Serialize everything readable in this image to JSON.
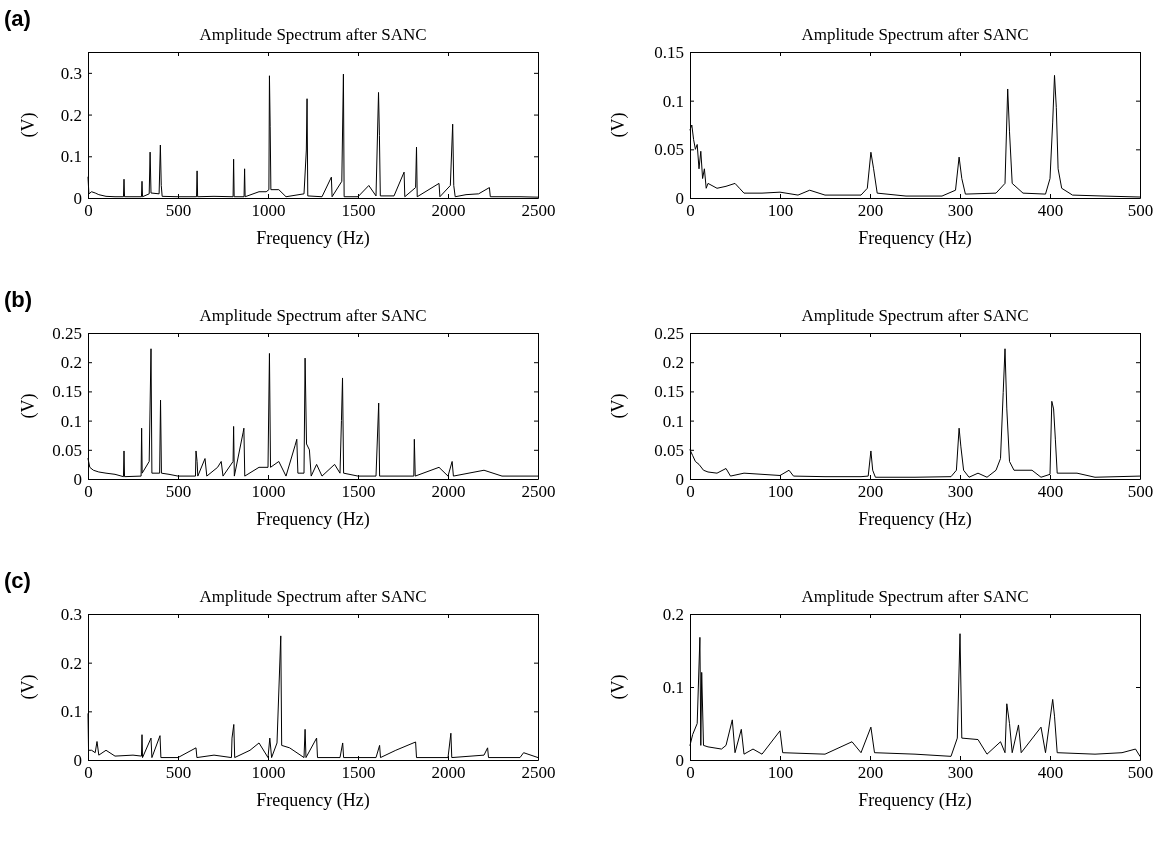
{
  "chart_data": [
    {
      "type": "line",
      "title": "Amplitude Spectrum after SANC",
      "xlabel": "Frequency (Hz)",
      "ylabel": "(V)",
      "annotations": [
        "(a)"
      ],
      "xlim": [
        0,
        2500
      ],
      "xticks": [
        0,
        500,
        1000,
        1500,
        2000,
        2500
      ],
      "ylim": [
        0,
        0.35
      ],
      "yticks": [
        0,
        0.1,
        0.2,
        0.3
      ],
      "marker": "none",
      "line_style": "solid",
      "grid": false,
      "series": [
        {
          "color": "#000000",
          "x": [
            0,
            5,
            20,
            40,
            60,
            100,
            150,
            197,
            200,
            203,
            297,
            300,
            303,
            340,
            345,
            350,
            395,
            402,
            407,
            412,
            500,
            603,
            606,
            609,
            700,
            806,
            809,
            812,
            867,
            870,
            873,
            950,
            990,
            1005,
            1008,
            1012,
            1016,
            1060,
            1100,
            1200,
            1213,
            1217,
            1221,
            1300,
            1352,
            1356,
            1410,
            1419,
            1423,
            1500,
            1560,
            1600,
            1614,
            1619,
            1624,
            1700,
            1756,
            1760,
            1820,
            1825,
            1829,
            1950,
            1955,
            2013,
            2026,
            2032,
            2040,
            2100,
            2170,
            2230,
            2235,
            2400,
            2500
          ],
          "values": [
            0.05,
            0.01,
            0.015,
            0.012,
            0.008,
            0.004,
            0.003,
            0.003,
            0.045,
            0.003,
            0.003,
            0.04,
            0.003,
            0.01,
            0.11,
            0.012,
            0.01,
            0.127,
            0.03,
            0.004,
            0.003,
            0.003,
            0.065,
            0.003,
            0.004,
            0.003,
            0.093,
            0.003,
            0.003,
            0.07,
            0.003,
            0.015,
            0.015,
            0.02,
            0.293,
            0.172,
            0.02,
            0.02,
            0.003,
            0.01,
            0.115,
            0.238,
            0.005,
            0.003,
            0.05,
            0.003,
            0.04,
            0.297,
            0.003,
            0.003,
            0.03,
            0.005,
            0.253,
            0.15,
            0.005,
            0.005,
            0.062,
            0.003,
            0.025,
            0.122,
            0.003,
            0.035,
            0.003,
            0.03,
            0.177,
            0.03,
            0.003,
            0.008,
            0.01,
            0.025,
            0.003,
            0.003,
            0.002
          ]
        }
      ]
    },
    {
      "type": "line",
      "title": "Amplitude Spectrum after SANC",
      "xlabel": "Frequency (Hz)",
      "ylabel": "(V)",
      "xlim": [
        0,
        500
      ],
      "xticks": [
        0,
        100,
        200,
        300,
        400,
        500
      ],
      "ylim": [
        0,
        0.15
      ],
      "yticks": [
        0,
        0.05,
        0.1,
        0.15
      ],
      "marker": "none",
      "line_style": "solid",
      "grid": false,
      "series": [
        {
          "color": "#000000",
          "x": [
            0,
            2,
            4,
            6,
            8,
            10,
            12,
            14,
            16,
            18,
            20,
            30,
            40,
            50,
            55,
            60,
            80,
            100,
            120,
            133,
            150,
            190,
            197,
            201,
            204,
            208,
            240,
            280,
            295,
            299,
            302,
            306,
            340,
            350,
            353,
            355,
            358,
            370,
            395,
            400,
            403,
            405,
            407,
            409,
            413,
            425,
            460,
            500
          ],
          "values": [
            0.07,
            0.075,
            0.06,
            0.05,
            0.055,
            0.03,
            0.048,
            0.02,
            0.03,
            0.01,
            0.015,
            0.01,
            0.012,
            0.015,
            0.01,
            0.005,
            0.005,
            0.006,
            0.003,
            0.008,
            0.003,
            0.003,
            0.01,
            0.047,
            0.03,
            0.005,
            0.002,
            0.002,
            0.008,
            0.042,
            0.02,
            0.004,
            0.005,
            0.015,
            0.112,
            0.068,
            0.015,
            0.005,
            0.004,
            0.02,
            0.078,
            0.126,
            0.093,
            0.03,
            0.01,
            0.003,
            0.002,
            0.001
          ]
        }
      ]
    },
    {
      "type": "line",
      "title": "Amplitude Spectrum after SANC",
      "xlabel": "Frequency (Hz)",
      "ylabel": "(V)",
      "annotations": [
        "(b)"
      ],
      "xlim": [
        0,
        2500
      ],
      "xticks": [
        0,
        500,
        1000,
        1500,
        2000,
        2500
      ],
      "ylim": [
        0,
        0.25
      ],
      "yticks": [
        0,
        0.05,
        0.1,
        0.15,
        0.2,
        0.25
      ],
      "marker": "none",
      "line_style": "solid",
      "grid": false,
      "series": [
        {
          "color": "#000000",
          "x": [
            0,
            10,
            30,
            60,
            100,
            150,
            197,
            200,
            203,
            295,
            298,
            301,
            340,
            350,
            355,
            398,
            403,
            408,
            450,
            500,
            597,
            600,
            606,
            610,
            650,
            660,
            720,
            740,
            750,
            806,
            809,
            813,
            862,
            866,
            871,
            950,
            1000,
            1008,
            1014,
            1060,
            1100,
            1150,
            1160,
            1166,
            1200,
            1206,
            1214,
            1230,
            1240,
            1270,
            1300,
            1370,
            1400,
            1408,
            1414,
            1420,
            1500,
            1600,
            1615,
            1620,
            1700,
            1810,
            1813,
            1818,
            1950,
            2000,
            2023,
            2030,
            2200,
            2300,
            2500
          ],
          "values": [
            0.035,
            0.02,
            0.015,
            0.012,
            0.01,
            0.008,
            0.004,
            0.048,
            0.004,
            0.005,
            0.087,
            0.01,
            0.03,
            0.223,
            0.01,
            0.01,
            0.135,
            0.01,
            0.008,
            0.005,
            0.005,
            0.048,
            0.03,
            0.005,
            0.035,
            0.005,
            0.02,
            0.03,
            0.005,
            0.03,
            0.09,
            0.005,
            0.08,
            0.087,
            0.005,
            0.02,
            0.02,
            0.215,
            0.02,
            0.03,
            0.005,
            0.057,
            0.068,
            0.01,
            0.01,
            0.207,
            0.06,
            0.05,
            0.005,
            0.025,
            0.005,
            0.025,
            0.01,
            0.1,
            0.173,
            0.01,
            0.005,
            0.005,
            0.13,
            0.005,
            0.005,
            0.005,
            0.068,
            0.005,
            0.02,
            0.005,
            0.03,
            0.005,
            0.015,
            0.005,
            0.005
          ]
        }
      ]
    },
    {
      "type": "line",
      "title": "Amplitude Spectrum after SANC",
      "xlabel": "Frequency (Hz)",
      "ylabel": "(V)",
      "xlim": [
        0,
        500
      ],
      "xticks": [
        0,
        100,
        200,
        300,
        400,
        500
      ],
      "ylim": [
        0,
        0.25
      ],
      "yticks": [
        0,
        0.05,
        0.1,
        0.15,
        0.2,
        0.25
      ],
      "marker": "none",
      "line_style": "solid",
      "grid": false,
      "series": [
        {
          "color": "#000000",
          "x": [
            0,
            3,
            6,
            10,
            15,
            20,
            30,
            40,
            45,
            60,
            80,
            100,
            110,
            115,
            150,
            190,
            198,
            201,
            203,
            206,
            250,
            290,
            296,
            299,
            301,
            304,
            310,
            320,
            330,
            340,
            345,
            348,
            350,
            352,
            355,
            360,
            380,
            390,
            400,
            402,
            404,
            406,
            408,
            420,
            430,
            450,
            500
          ],
          "values": [
            0.05,
            0.04,
            0.03,
            0.025,
            0.015,
            0.012,
            0.01,
            0.018,
            0.005,
            0.01,
            0.008,
            0.006,
            0.015,
            0.005,
            0.004,
            0.004,
            0.005,
            0.048,
            0.015,
            0.003,
            0.003,
            0.004,
            0.015,
            0.087,
            0.055,
            0.015,
            0.003,
            0.01,
            0.003,
            0.015,
            0.035,
            0.148,
            0.223,
            0.12,
            0.03,
            0.015,
            0.015,
            0.003,
            0.008,
            0.133,
            0.12,
            0.067,
            0.01,
            0.01,
            0.01,
            0.003,
            0.005
          ]
        }
      ]
    },
    {
      "type": "line",
      "title": "Amplitude Spectrum after SANC",
      "xlabel": "Frequency (Hz)",
      "ylabel": "(V)",
      "annotations": [
        "(c)"
      ],
      "xlim": [
        0,
        2500
      ],
      "xticks": [
        0,
        500,
        1000,
        1500,
        2000,
        2500
      ],
      "ylim": [
        0,
        0.3
      ],
      "yticks": [
        0,
        0.1,
        0.2,
        0.3
      ],
      "marker": "none",
      "line_style": "solid",
      "grid": false,
      "series": [
        {
          "color": "#000000",
          "x": [
            0,
            3,
            20,
            40,
            50,
            60,
            100,
            150,
            250,
            297,
            300,
            303,
            350,
            355,
            400,
            405,
            500,
            600,
            605,
            700,
            797,
            800,
            810,
            815,
            900,
            950,
            1000,
            1010,
            1020,
            1050,
            1071,
            1076,
            1120,
            1200,
            1206,
            1211,
            1270,
            1275,
            1400,
            1415,
            1420,
            1600,
            1620,
            1625,
            1710,
            1820,
            1825,
            2000,
            2016,
            2021,
            2200,
            2220,
            2225,
            2400,
            2420,
            2500
          ],
          "values": [
            0.095,
            0.02,
            0.02,
            0.015,
            0.038,
            0.01,
            0.02,
            0.008,
            0.01,
            0.008,
            0.052,
            0.005,
            0.045,
            0.005,
            0.05,
            0.005,
            0.005,
            0.025,
            0.005,
            0.01,
            0.005,
            0.045,
            0.073,
            0.005,
            0.02,
            0.035,
            0.005,
            0.045,
            0.005,
            0.035,
            0.255,
            0.03,
            0.025,
            0.005,
            0.063,
            0.005,
            0.045,
            0.005,
            0.005,
            0.035,
            0.005,
            0.005,
            0.03,
            0.005,
            0.02,
            0.037,
            0.005,
            0.005,
            0.055,
            0.005,
            0.01,
            0.025,
            0.005,
            0.005,
            0.015,
            0.005
          ]
        }
      ]
    },
    {
      "type": "line",
      "title": "Amplitude Spectrum after SANC",
      "xlabel": "Frequency (Hz)",
      "ylabel": "(V)",
      "xlim": [
        0,
        500
      ],
      "xticks": [
        0,
        100,
        200,
        300,
        400,
        500
      ],
      "ylim": [
        0,
        0.2
      ],
      "yticks": [
        0,
        0.1,
        0.2
      ],
      "marker": "none",
      "line_style": "solid",
      "grid": false,
      "series": [
        {
          "color": "#000000",
          "x": [
            0,
            3,
            8,
            11,
            12,
            13,
            15,
            20,
            35,
            40,
            47,
            50,
            57,
            60,
            70,
            80,
            100,
            103,
            150,
            180,
            190,
            201,
            205,
            250,
            290,
            297,
            300,
            302,
            320,
            330,
            345,
            350,
            352,
            355,
            358,
            365,
            368,
            390,
            395,
            403,
            405,
            408,
            450,
            480,
            495,
            500
          ],
          "values": [
            0.02,
            0.035,
            0.05,
            0.168,
            0.02,
            0.12,
            0.02,
            0.018,
            0.015,
            0.02,
            0.055,
            0.01,
            0.042,
            0.008,
            0.015,
            0.008,
            0.04,
            0.01,
            0.008,
            0.025,
            0.01,
            0.045,
            0.01,
            0.008,
            0.005,
            0.03,
            0.173,
            0.03,
            0.028,
            0.008,
            0.025,
            0.01,
            0.077,
            0.05,
            0.01,
            0.048,
            0.01,
            0.045,
            0.01,
            0.083,
            0.06,
            0.01,
            0.008,
            0.01,
            0.015,
            0.005
          ]
        }
      ]
    }
  ]
}
